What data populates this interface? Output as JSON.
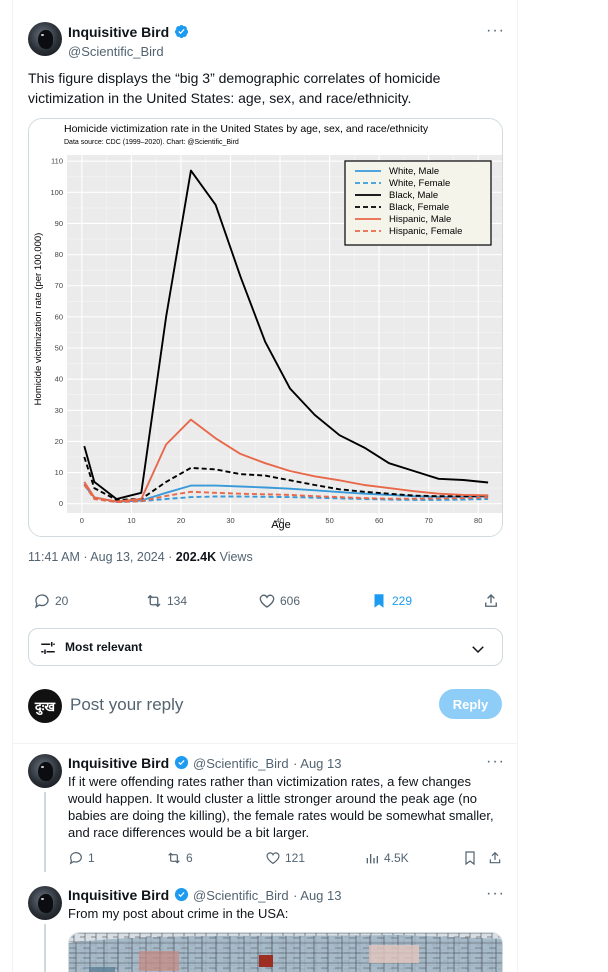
{
  "tweet": {
    "author_name": "Inquisitive Bird",
    "author_handle": "@Scientific_Bird",
    "text": "This figure displays the “big 3” demographic correlates of homicide victimization in the United States: age, sex, and race/ethnicity.",
    "timestamp": "11:41 AM · Aug 13, 2024 · ",
    "views_count": "202.4K",
    "views_label": " Views",
    "replies": "20",
    "reposts": "134",
    "likes": "606",
    "bookmarks": "229"
  },
  "chart_data": {
    "type": "line",
    "title": "Homicide victimization rate in the United States by age, sex, and race/ethnicity",
    "subtitle": "Data source: CDC (1999–2020). Chart: @Scientific_Bird",
    "xlabel": "Age",
    "ylabel": "Homicide victimization rate (per 100,000)",
    "xlim": [
      -3,
      85
    ],
    "ylim": [
      -3,
      112
    ],
    "xticks": [
      0,
      10,
      20,
      30,
      40,
      50,
      60,
      70,
      80
    ],
    "yticks": [
      0,
      10,
      20,
      30,
      40,
      50,
      60,
      70,
      80,
      90,
      100,
      110
    ],
    "grid": true,
    "legend_position": "top-right",
    "colors": {
      "white": "#3a9ad9",
      "black": "#000000",
      "hispanic": "#e8684a"
    },
    "x": [
      0.5,
      2.5,
      7,
      12,
      17,
      22,
      27,
      32,
      37,
      42,
      47,
      52,
      57,
      62,
      67,
      72,
      77,
      82
    ],
    "series": [
      {
        "name": "White, Male",
        "color": "#3a9ad9",
        "dashed": false,
        "values": [
          6,
          2,
          0.6,
          1,
          3.5,
          5.8,
          5.8,
          5.5,
          5.2,
          4.8,
          4.3,
          3.7,
          3.2,
          2.8,
          2.4,
          2.2,
          2.1,
          2.3
        ]
      },
      {
        "name": "White, Female",
        "color": "#3a9ad9",
        "dashed": true,
        "values": [
          6.3,
          1.8,
          0.5,
          0.8,
          1.5,
          2.1,
          2.3,
          2.3,
          2.2,
          2.1,
          1.9,
          1.7,
          1.5,
          1.3,
          1.2,
          1.2,
          1.3,
          1.5
        ]
      },
      {
        "name": "Black, Male",
        "color": "#000000",
        "dashed": false,
        "values": [
          18.5,
          7,
          1.5,
          3.5,
          60,
          107,
          96,
          73,
          52,
          37,
          28.5,
          22,
          18,
          13,
          10.5,
          8,
          7.6,
          6.8
        ]
      },
      {
        "name": "Black, Female",
        "color": "#000000",
        "dashed": true,
        "values": [
          15,
          5,
          1.2,
          1.5,
          7,
          11.5,
          11,
          9.5,
          9,
          7.5,
          6,
          4.6,
          3.8,
          3.2,
          2.6,
          2.4,
          2.4,
          2.6
        ]
      },
      {
        "name": "Hispanic, Male",
        "color": "#e8684a",
        "dashed": false,
        "values": [
          7,
          2,
          0.7,
          1.5,
          19,
          27,
          21,
          16,
          13,
          10.5,
          8.8,
          7.5,
          6,
          5,
          4,
          3.2,
          2.8,
          2.7
        ]
      },
      {
        "name": "Hispanic, Female",
        "color": "#e8684a",
        "dashed": true,
        "values": [
          6,
          1.5,
          0.5,
          0.8,
          2.5,
          3.8,
          3.5,
          3.2,
          3,
          2.8,
          2.4,
          2.1,
          1.8,
          1.6,
          1.6,
          1.7,
          1.8,
          2
        ]
      }
    ]
  },
  "sort": {
    "label": "Most relevant"
  },
  "reply_composer": {
    "placeholder": "Post your reply",
    "button": "Reply",
    "avatar_text": "दुःख"
  },
  "replies": [
    {
      "author_name": "Inquisitive Bird",
      "author_handle": "@Scientific_Bird",
      "date": "· Aug 13",
      "text": "If it were offending rates rather than victimization rates, a few changes would happen. It would cluster a little stronger around the peak age (no babies are doing the killing), the female rates would be somewhat smaller, and race differences would be a bit larger.",
      "replies": "1",
      "reposts": "6",
      "likes": "121",
      "views": "4.5K"
    },
    {
      "author_name": "Inquisitive Bird",
      "author_handle": "@Scientific_Bird",
      "date": "· Aug 13",
      "text": "From my post about crime in the USA:"
    }
  ]
}
